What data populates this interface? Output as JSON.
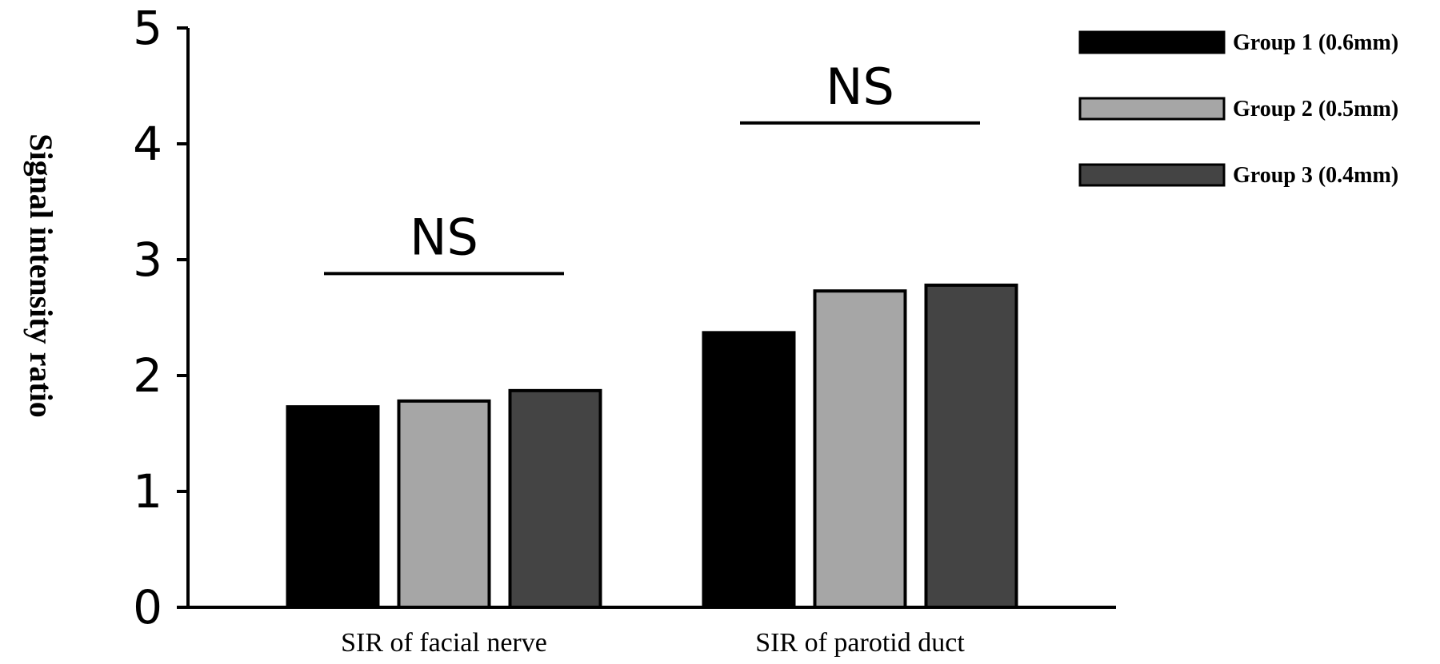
{
  "chart_data": {
    "type": "bar",
    "title": "",
    "xlabel": "",
    "ylabel": "Signal intensity ratio",
    "ylim": [
      0,
      5
    ],
    "yticks": [
      "0",
      "1",
      "2",
      "3",
      "4",
      "5"
    ],
    "categories": [
      "SIR of facial nerve",
      "SIR of parotid duct"
    ],
    "series": [
      {
        "name": "Group 1 (0.6mm)",
        "color": "#000000",
        "values": [
          1.73,
          2.37
        ]
      },
      {
        "name": "Group 2 (0.5mm)",
        "color": "#a6a6a6",
        "values": [
          1.78,
          2.73
        ]
      },
      {
        "name": "Group 3 (0.4mm)",
        "color": "#444444",
        "values": [
          1.87,
          2.78
        ]
      }
    ],
    "annotations": [
      {
        "category": "SIR of facial nerve",
        "text": "NS",
        "y": 2.88
      },
      {
        "category": "SIR of parotid duct",
        "text": "NS",
        "y": 4.18
      }
    ],
    "legend_position": "top-right",
    "grid": false
  }
}
